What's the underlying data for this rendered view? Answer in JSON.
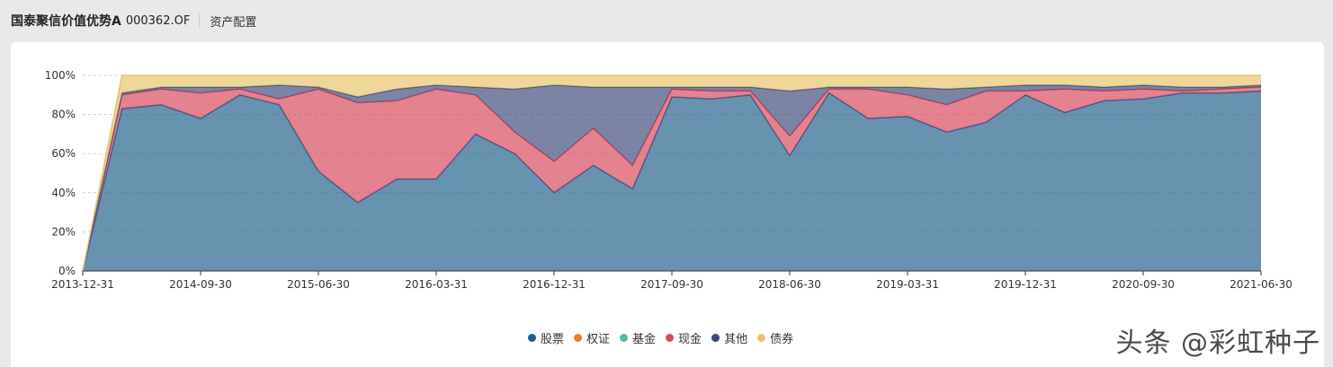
{
  "header": {
    "fund_name": "国泰聚信价值优势A",
    "fund_code": "000362.OF",
    "section_title": "资产配置"
  },
  "watermark": "头条 @彩虹种子",
  "chart_data": {
    "type": "area",
    "stacked": true,
    "title": "",
    "xlabel": "",
    "ylabel": "",
    "ylim": [
      0,
      100
    ],
    "y_tick_format": "percent",
    "grid": true,
    "legend_position": "bottom",
    "x": [
      "2013-12-31",
      "2014-03-31",
      "2014-06-30",
      "2014-09-30",
      "2014-12-31",
      "2015-03-31",
      "2015-06-30",
      "2015-09-30",
      "2015-12-31",
      "2016-03-31",
      "2016-06-30",
      "2016-09-30",
      "2016-12-31",
      "2017-03-31",
      "2017-06-30",
      "2017-09-30",
      "2017-12-31",
      "2018-03-31",
      "2018-06-30",
      "2018-09-30",
      "2018-12-31",
      "2019-03-31",
      "2019-06-30",
      "2019-09-30",
      "2019-12-31",
      "2020-03-31",
      "2020-06-30",
      "2020-09-30",
      "2020-12-31",
      "2021-03-31",
      "2021-06-30"
    ],
    "x_tick_labels": [
      "2013-12-31",
      "2014-09-30",
      "2015-06-30",
      "2016-03-31",
      "2016-12-31",
      "2017-09-30",
      "2018-06-30",
      "2019-03-31",
      "2019-12-31",
      "2020-09-30",
      "2021-06-30"
    ],
    "y_tick_labels": [
      "0%",
      "20%",
      "40%",
      "60%",
      "80%",
      "100%"
    ],
    "y_ticks": [
      0,
      20,
      40,
      60,
      80,
      100
    ],
    "series": [
      {
        "name": "股票",
        "color": "#1f5f8b",
        "values": [
          0,
          83,
          85,
          78,
          90,
          85,
          51,
          35,
          47,
          47,
          70,
          60,
          40,
          54,
          42,
          89,
          88,
          90,
          59,
          91,
          78,
          79,
          71,
          76,
          90,
          81,
          87,
          88,
          91,
          91,
          92
        ]
      },
      {
        "name": "权证",
        "color": "#f07a2a",
        "values": [
          0,
          0,
          0,
          0,
          0,
          0,
          0,
          0,
          0,
          0,
          0,
          0,
          0,
          0,
          0,
          0,
          0,
          0,
          0,
          0,
          0,
          0,
          0,
          0,
          0,
          0,
          0,
          0,
          0,
          0,
          0
        ]
      },
      {
        "name": "基金",
        "color": "#55b7b0",
        "values": [
          0,
          0,
          0,
          0,
          0,
          0,
          0,
          0,
          0,
          0,
          0,
          0,
          0,
          0,
          0,
          0,
          0,
          0,
          0,
          0,
          0,
          0,
          0,
          0,
          0,
          0,
          0,
          0,
          0,
          0,
          0
        ]
      },
      {
        "name": "现金",
        "color": "#d9475c",
        "values": [
          0,
          7,
          8,
          13,
          3,
          3,
          42,
          51,
          40,
          46,
          20,
          11,
          16,
          19,
          12,
          4,
          4,
          2,
          10,
          2,
          15,
          11,
          14,
          16,
          2,
          12,
          5,
          5,
          1,
          2,
          2
        ]
      },
      {
        "name": "其他",
        "color": "#3d4a7a",
        "values": [
          0,
          1,
          1,
          3,
          1,
          7,
          1,
          3,
          6,
          2,
          4,
          22,
          39,
          21,
          40,
          1,
          2,
          2,
          23,
          1,
          1,
          4,
          8,
          2,
          3,
          2,
          2,
          2,
          2,
          1,
          1
        ]
      },
      {
        "name": "债券",
        "color": "#e8c36a",
        "values": [
          0,
          9,
          6,
          6,
          6,
          5,
          6,
          11,
          7,
          5,
          6,
          7,
          5,
          6,
          6,
          6,
          6,
          6,
          8,
          6,
          6,
          6,
          7,
          6,
          5,
          5,
          6,
          5,
          6,
          6,
          5
        ]
      }
    ]
  }
}
